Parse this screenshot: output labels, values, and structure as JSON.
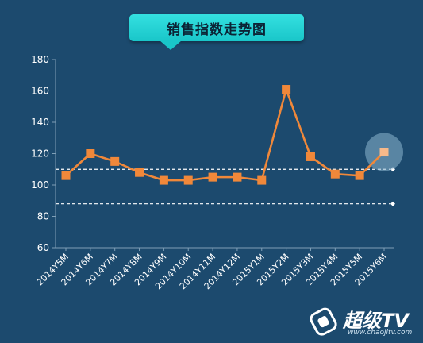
{
  "chart_data": {
    "type": "line",
    "title": "销售指数走势图",
    "categories": [
      "2014Y5M",
      "2014Y6M",
      "2014Y7M",
      "2014Y8M",
      "2014Y9M",
      "2014Y10M",
      "2014Y11M",
      "2014Y12M",
      "2015Y1M",
      "2015Y2M",
      "2015Y3M",
      "2015Y4M",
      "2015Y5M",
      "2015Y6M"
    ],
    "series": [
      {
        "values": [
          106,
          120,
          115,
          108,
          103,
          103,
          105,
          105,
          103,
          161,
          118,
          107,
          106,
          121
        ]
      }
    ],
    "ylim": [
      60,
      180
    ],
    "yticks": [
      60,
      80,
      100,
      120,
      140,
      160,
      180
    ],
    "reference_lines": [
      110,
      88
    ],
    "highlight_index": 13,
    "xlabel": "",
    "ylabel": "",
    "grid": false,
    "colors": {
      "background": "#1c4a6e",
      "line": "#f0883a",
      "marker": "#f0883a",
      "highlight_marker": "#f6b98a",
      "reference": "#ffffff",
      "axis": "#7f9fb7",
      "tick_text": "#ffffff",
      "title_banner": "#1fd0d2"
    }
  },
  "watermark": {
    "brand": "超级TV",
    "url": "www.chaojitv.com",
    "icon": "chaojitv-logo-icon"
  }
}
